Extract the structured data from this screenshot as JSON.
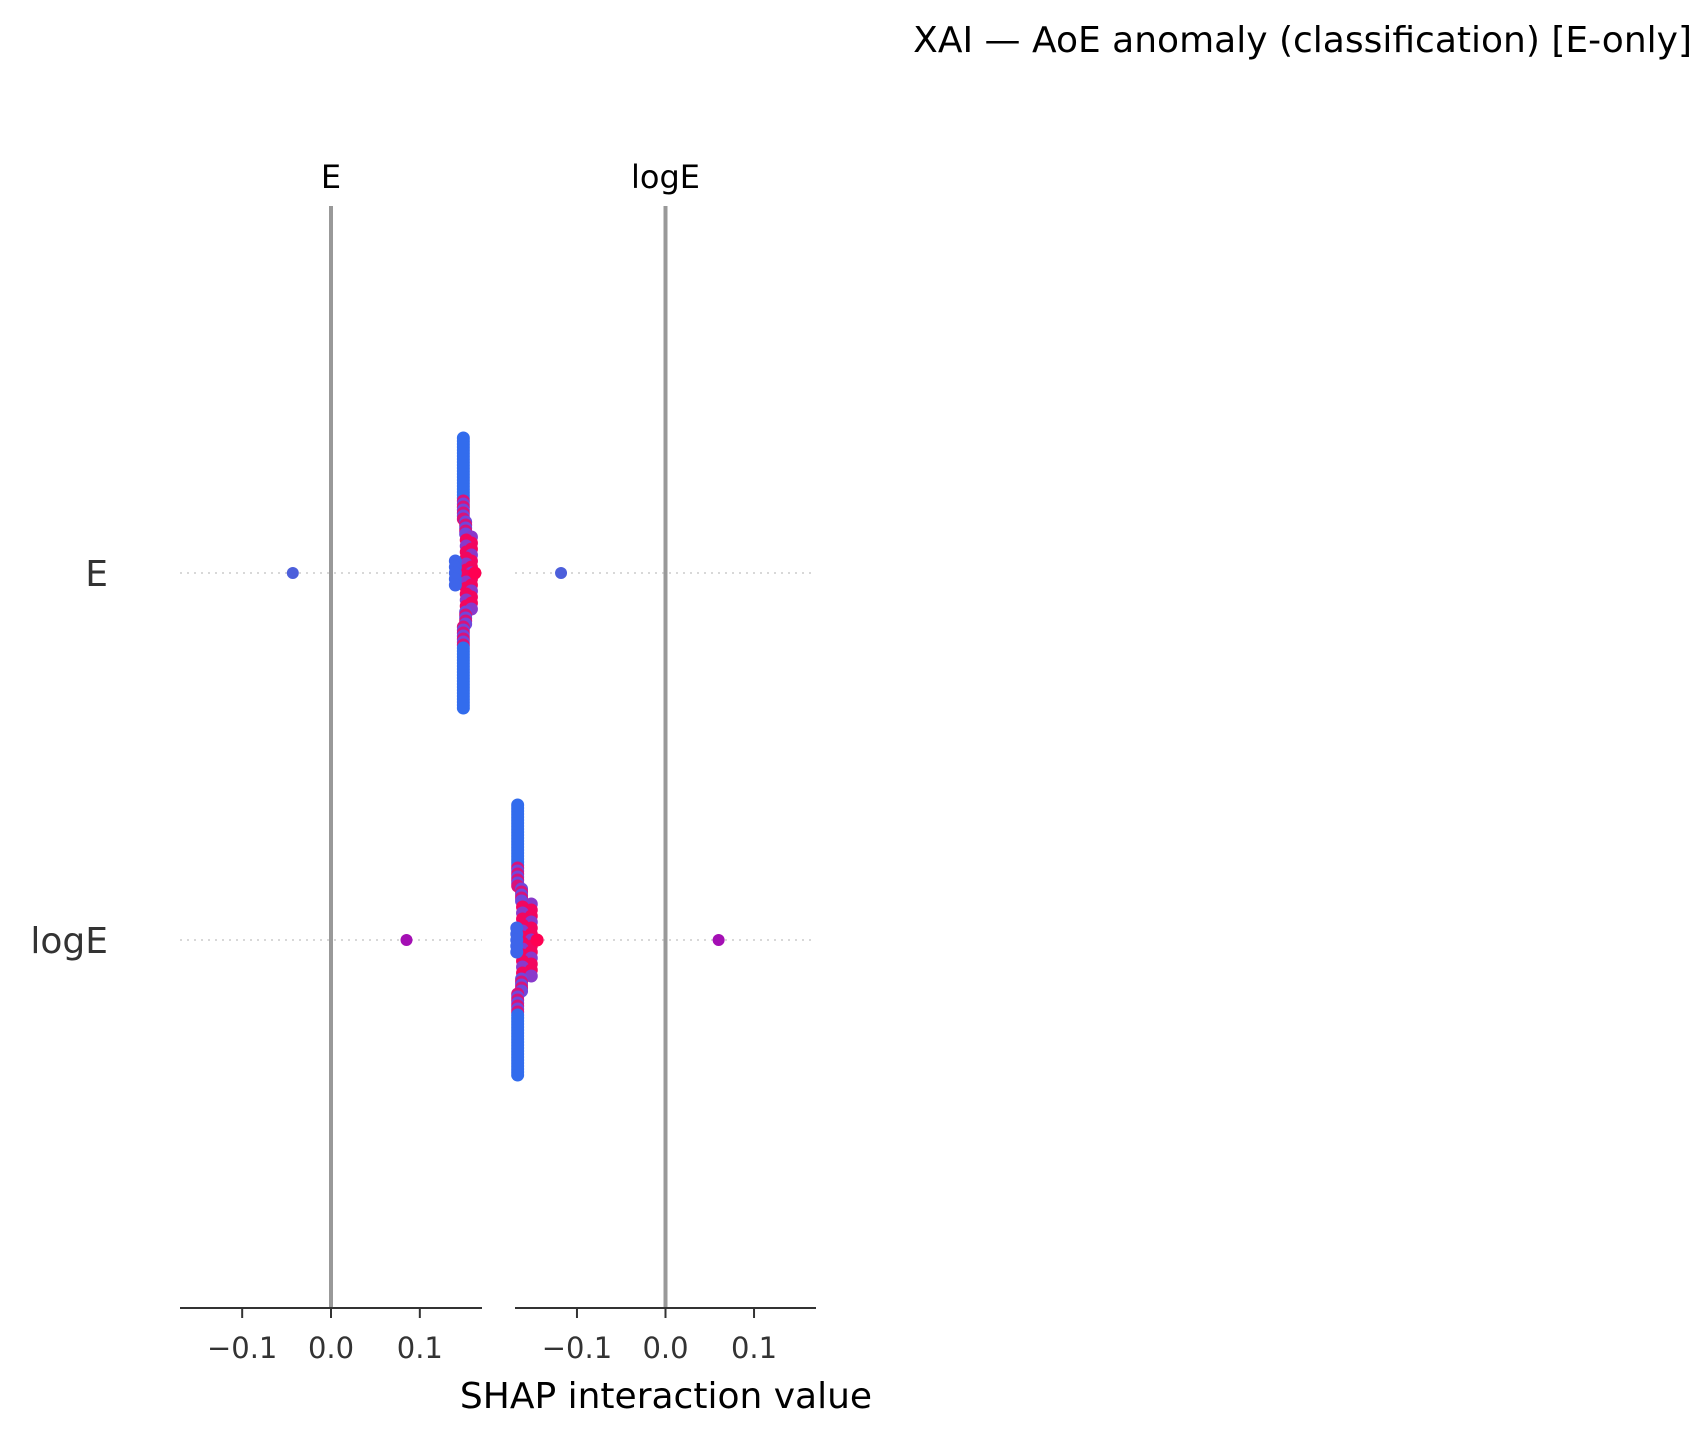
{
  "chart_data": {
    "type": "scatter",
    "subtype": "shap-interaction-beeswarm",
    "title": "XAI — AoE anomaly (classification) [E-only]",
    "xlabel": "SHAP interaction value",
    "features": [
      "E",
      "logE"
    ],
    "panels": [
      {
        "column_feature": "E",
        "xlim": [
          -0.17,
          0.17
        ],
        "xticks": [
          -0.1,
          0.0,
          0.1
        ],
        "xtick_labels": [
          "−0.1",
          "0.0",
          "0.1"
        ],
        "rows": [
          {
            "row_feature": "E",
            "cluster_x": 0.149,
            "cluster_max_x": 0.162,
            "cluster_min_x": 0.14,
            "outliers": [
              {
                "x": -0.043,
                "color": "#4c5fdb"
              }
            ]
          },
          {
            "row_feature": "logE",
            "cluster_x": null,
            "outliers": [
              {
                "x": 0.085,
                "color": "#a40fb4"
              }
            ]
          }
        ]
      },
      {
        "column_feature": "logE",
        "xlim": [
          -0.17,
          0.17
        ],
        "xticks": [
          -0.1,
          0.0,
          0.1
        ],
        "xtick_labels": [
          "−0.1",
          "0.0",
          "0.1"
        ],
        "rows": [
          {
            "row_feature": "E",
            "cluster_x": null,
            "outliers": [
              {
                "x": -0.118,
                "color": "#4c5fdb"
              }
            ]
          },
          {
            "row_feature": "logE",
            "cluster_x": -0.167,
            "cluster_max_x": -0.145,
            "cluster_min_x": -0.168,
            "outliers": [
              {
                "x": 0.06,
                "color": "#a40fb4"
              }
            ]
          }
        ]
      }
    ],
    "colormap": {
      "low": "#008afb",
      "mid": "#7c3fd8",
      "high": "#ff0052"
    },
    "grid": false,
    "legend": "none"
  }
}
